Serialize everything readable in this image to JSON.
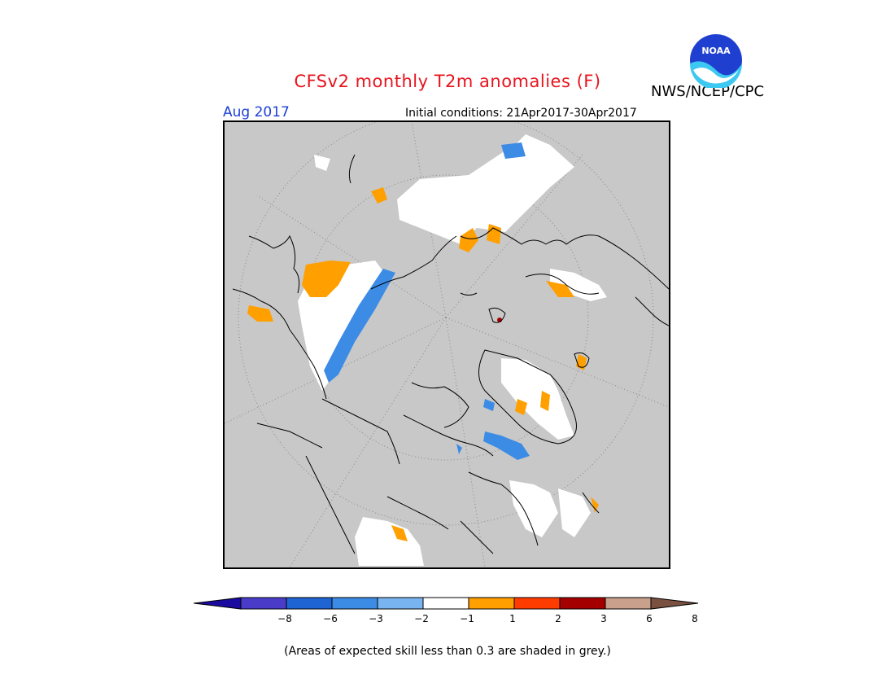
{
  "header": {
    "title": "CFSv2 monthly T2m anomalies (F)",
    "agency": "NWS/NCEP/CPC",
    "period": "Aug 2017",
    "initial_conditions": "Initial conditions: 21Apr2017-30Apr2017",
    "logo_text": "NOAA"
  },
  "map": {
    "projection": "north polar stereographic",
    "background_color": "#c8c8c8",
    "variable": "2-meter temperature anomaly"
  },
  "colorbar": {
    "ticks": [
      "-8",
      "-6",
      "-3",
      "-2",
      "-1",
      "1",
      "2",
      "3",
      "6",
      "8"
    ],
    "colors": [
      "#1a0aa0",
      "#4a3cc8",
      "#1e64d2",
      "#3c8ce6",
      "#78b4f0",
      "#ffffff",
      "#ff9f00",
      "#ff3c00",
      "#a50000",
      "#c8a08c",
      "#7a5040"
    ]
  },
  "footnote": "(Areas of expected skill less than 0.3 are shaded in grey.)"
}
